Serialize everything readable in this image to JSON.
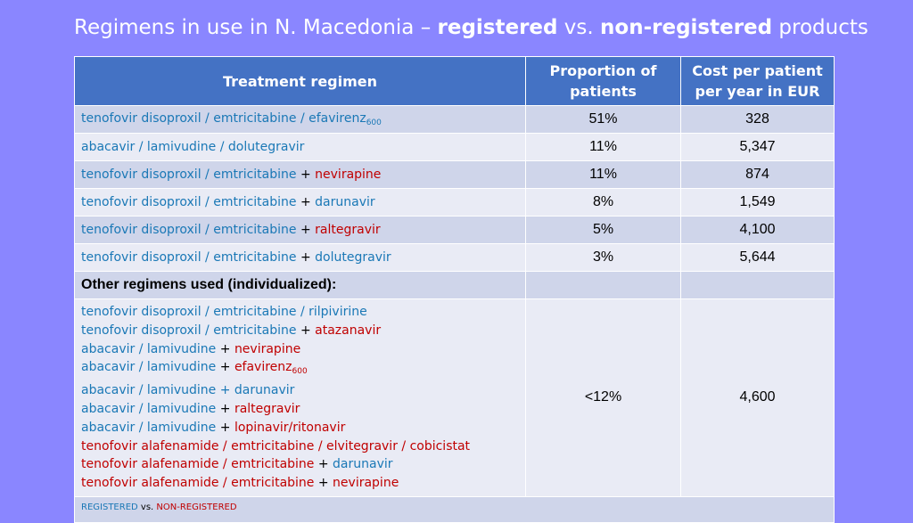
{
  "slide": {
    "title_parts": [
      "Regimens in use in N. Macedonia – ",
      "registered",
      " vs. ",
      "non-registered",
      " products"
    ]
  },
  "colors": {
    "registered": "#1a78b6",
    "non_registered": "#c00000",
    "header": "#4472c4"
  },
  "table": {
    "headers": [
      "Treatment regimen",
      "Proportion of patients",
      "Cost per patient per year in EUR"
    ],
    "rows": [
      {
        "regimen": [
          [
            "reg",
            "tenofovir disoproxil / emtricitabine / efavirenz"
          ],
          [
            "sub",
            "600"
          ]
        ],
        "proportion": "51%",
        "cost": "328"
      },
      {
        "regimen": [
          [
            "reg",
            "abacavir / lamivudine / dolutegravir"
          ]
        ],
        "proportion": "11%",
        "cost": "5,347"
      },
      {
        "regimen": [
          [
            "reg",
            "tenofovir disoproxil / emtricitabine"
          ],
          [
            "plus",
            " + "
          ],
          [
            "non",
            "nevirapine"
          ]
        ],
        "proportion": "11%",
        "cost": "874"
      },
      {
        "regimen": [
          [
            "reg",
            "tenofovir disoproxil / emtricitabine"
          ],
          [
            "plus",
            " + "
          ],
          [
            "reg",
            "darunavir"
          ]
        ],
        "proportion": "8%",
        "cost": "1,549"
      },
      {
        "regimen": [
          [
            "reg",
            "tenofovir disoproxil / emtricitabine"
          ],
          [
            "plus",
            " + "
          ],
          [
            "non",
            "raltegravir"
          ]
        ],
        "proportion": "5%",
        "cost": "4,100"
      },
      {
        "regimen": [
          [
            "reg",
            "tenofovir disoproxil / emtricitabine"
          ],
          [
            "plus",
            " + "
          ],
          [
            "reg",
            "dolutegravir"
          ]
        ],
        "proportion": "3%",
        "cost": "5,644"
      }
    ],
    "other_heading": "Other regimens used (individualized):",
    "other_lines": [
      [
        [
          "reg",
          "tenofovir disoproxil / emtricitabine / rilpivirine"
        ]
      ],
      [
        [
          "reg",
          "tenofovir disoproxil / emtricitabine"
        ],
        [
          "plus",
          " + "
        ],
        [
          "non",
          "atazanavir"
        ]
      ],
      [
        [
          "reg",
          "abacavir / lamivudine"
        ],
        [
          "plus",
          " + "
        ],
        [
          "non",
          "nevirapine"
        ]
      ],
      [
        [
          "reg",
          "abacavir / lamivudine"
        ],
        [
          "plus",
          " + "
        ],
        [
          "non",
          "efavirenz"
        ],
        [
          "subnon",
          "600"
        ]
      ],
      [
        [
          "reg",
          "abacavir / lamivudine + darunavir"
        ]
      ],
      [
        [
          "reg",
          "abacavir / lamivudine"
        ],
        [
          "plus",
          " + "
        ],
        [
          "non",
          "raltegravir"
        ]
      ],
      [
        [
          "reg",
          "abacavir / lamivudine"
        ],
        [
          "plus",
          " + "
        ],
        [
          "non",
          "lopinavir/ritonavir"
        ]
      ],
      [
        [
          "non",
          "tenofovir alafenamide / emtricitabine / elvitegravir / cobicistat"
        ]
      ],
      [
        [
          "non",
          "tenofovir alafenamide / emtricitabine"
        ],
        [
          "plus",
          " + "
        ],
        [
          "reg",
          "darunavir"
        ]
      ],
      [
        [
          "non",
          "tenofovir alafenamide / emtricitabine"
        ],
        [
          "plus",
          " + "
        ],
        [
          "non",
          "nevirapine"
        ]
      ]
    ],
    "other_proportion": "<12%",
    "other_cost": "4,600",
    "legend": [
      [
        "reg",
        "REGISTERED"
      ],
      [
        "plus",
        " vs. "
      ],
      [
        "non",
        "NON-REGISTERED"
      ]
    ]
  }
}
